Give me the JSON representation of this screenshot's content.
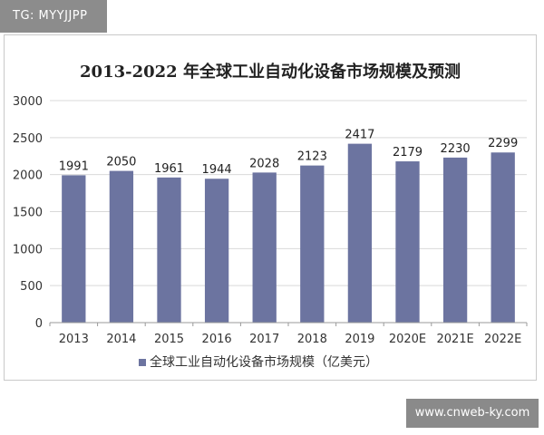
{
  "watermark": {
    "top_left": "TG: MYYJJPP",
    "bottom_right": "www.cnweb-ky.com"
  },
  "chart_data": {
    "type": "bar",
    "title": "2013-2022 年全球工业自动化设备市场规模及预测",
    "categories": [
      "2013",
      "2014",
      "2015",
      "2016",
      "2017",
      "2018",
      "2019",
      "2020E",
      "2021E",
      "2022E"
    ],
    "series": [
      {
        "name": "全球工业自动化设备市场规模（亿美元）",
        "values": [
          1991,
          2050,
          1961,
          1944,
          2028,
          2123,
          2417,
          2179,
          2230,
          2299
        ],
        "color": "#6c74a0"
      }
    ],
    "ylim": [
      0,
      3000
    ],
    "yticks": [
      "0",
      "500",
      "1000",
      "1500",
      "2000",
      "2500",
      "3000"
    ],
    "grid": true,
    "legend_position": "bottom-center",
    "xlabel": "",
    "ylabel": ""
  }
}
